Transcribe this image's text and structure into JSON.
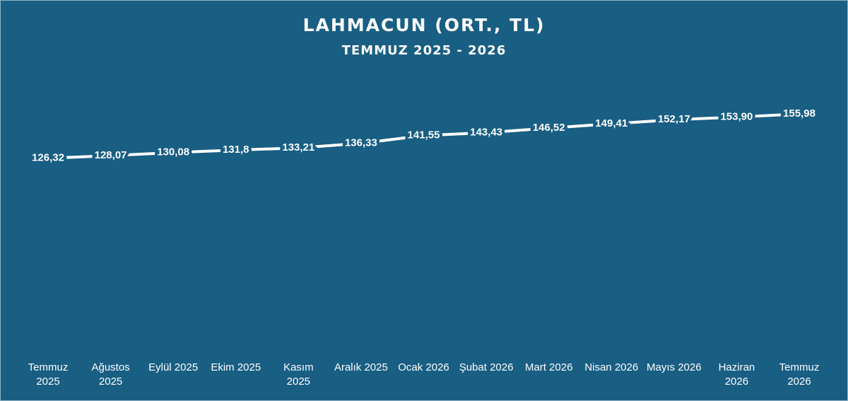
{
  "chart_data": {
    "type": "line",
    "title": "LAHMACUN (ORT., TL)",
    "subtitle": "TEMMUZ 2025 - 2026",
    "categories": [
      "Temmuz 2025",
      "Ağustos 2025",
      "Eylül 2025",
      "Ekim 2025",
      "Kasım 2025",
      "Aralık 2025",
      "Ocak 2026",
      "Şubat 2026",
      "Mart 2026",
      "Nisan 2026",
      "Mayıs 2026",
      "Haziran 2026",
      "Temmuz 2026"
    ],
    "series": [
      {
        "name": "Lahmacun",
        "color": "#ffffff",
        "values": [
          126.32,
          128.07,
          130.08,
          131.8,
          133.21,
          136.33,
          141.55,
          143.43,
          146.52,
          149.41,
          152.17,
          153.9,
          155.98
        ],
        "value_labels": [
          "126,32",
          "128,07",
          "130,08",
          "131,8",
          "133,21",
          "136,33",
          "141,55",
          "143,43",
          "146,52",
          "149,41",
          "152,17",
          "153,90",
          "155,98"
        ]
      }
    ],
    "ylim": [
      0,
      185
    ]
  }
}
